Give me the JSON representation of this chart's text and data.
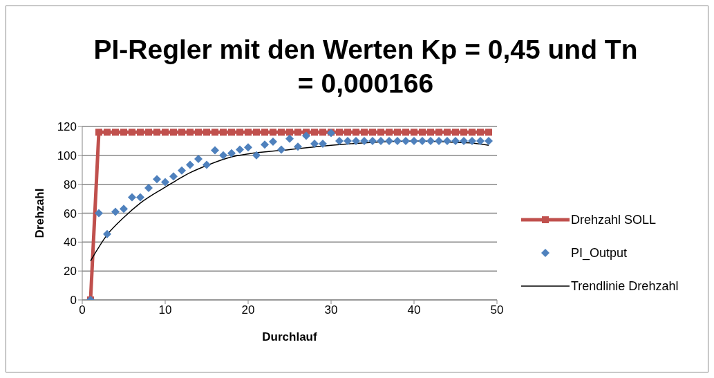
{
  "chart_data": {
    "type": "line",
    "title": "PI-Regler mit den Werten Kp = 0,45 und Tn = 0,000166",
    "xlabel": "Durchlauf",
    "ylabel": "Drehzahl",
    "xlim": [
      0,
      50
    ],
    "xticks": [
      0,
      10,
      20,
      30,
      40,
      50
    ],
    "ylim": [
      0,
      120
    ],
    "yticks": [
      0,
      20,
      40,
      60,
      80,
      100,
      120
    ],
    "grid": "y",
    "legend": "right",
    "series": [
      {
        "name": "Drehzahl SOLL",
        "color": "#c0504d",
        "marker": "square",
        "x": [
          1,
          2,
          3,
          4,
          5,
          6,
          7,
          8,
          9,
          10,
          11,
          12,
          13,
          14,
          15,
          16,
          17,
          18,
          19,
          20,
          21,
          22,
          23,
          24,
          25,
          26,
          27,
          28,
          29,
          30,
          31,
          32,
          33,
          34,
          35,
          36,
          37,
          38,
          39,
          40,
          41,
          42,
          43,
          44,
          45,
          46,
          47,
          48,
          49
        ],
        "values": [
          0,
          116,
          116,
          116,
          116,
          116,
          116,
          116,
          116,
          116,
          116,
          116,
          116,
          116,
          116,
          116,
          116,
          116,
          116,
          116,
          116,
          116,
          116,
          116,
          116,
          116,
          116,
          116,
          116,
          116,
          116,
          116,
          116,
          116,
          116,
          116,
          116,
          116,
          116,
          116,
          116,
          116,
          116,
          116,
          116,
          116,
          116,
          116,
          116
        ]
      },
      {
        "name": "PI_Output",
        "type": "scatter",
        "color": "#4f81bd",
        "marker": "diamond",
        "x": [
          1,
          2,
          3,
          4,
          5,
          6,
          7,
          8,
          9,
          10,
          11,
          12,
          13,
          14,
          15,
          16,
          17,
          18,
          19,
          20,
          21,
          22,
          23,
          24,
          25,
          26,
          27,
          28,
          29,
          30,
          31,
          32,
          33,
          34,
          35,
          36,
          37,
          38,
          39,
          40,
          41,
          42,
          43,
          44,
          45,
          46,
          47,
          48,
          49
        ],
        "values": [
          0,
          60,
          45.5,
          61,
          63,
          71,
          71,
          77.5,
          83.5,
          81.5,
          85.5,
          89.5,
          93.5,
          97.5,
          93.5,
          103.5,
          100,
          101.5,
          104,
          105.5,
          100,
          107.5,
          109.5,
          104,
          111.5,
          106,
          113.5,
          108,
          108,
          115.5,
          110,
          110,
          110,
          110,
          110,
          110,
          110,
          110,
          110,
          110,
          110,
          110,
          110,
          110,
          110,
          110,
          110,
          110,
          110
        ]
      },
      {
        "name": "Trendlinie Drehzahl",
        "color": "#000000",
        "marker": "none",
        "x": [
          1,
          3,
          5,
          7,
          10,
          13,
          15,
          18,
          20,
          25,
          30,
          35,
          40,
          45,
          47,
          49
        ],
        "values": [
          27,
          45,
          57,
          67,
          78,
          88,
          93,
          99,
          101,
          104,
          107,
          109,
          110,
          109,
          108.5,
          107
        ]
      }
    ]
  }
}
